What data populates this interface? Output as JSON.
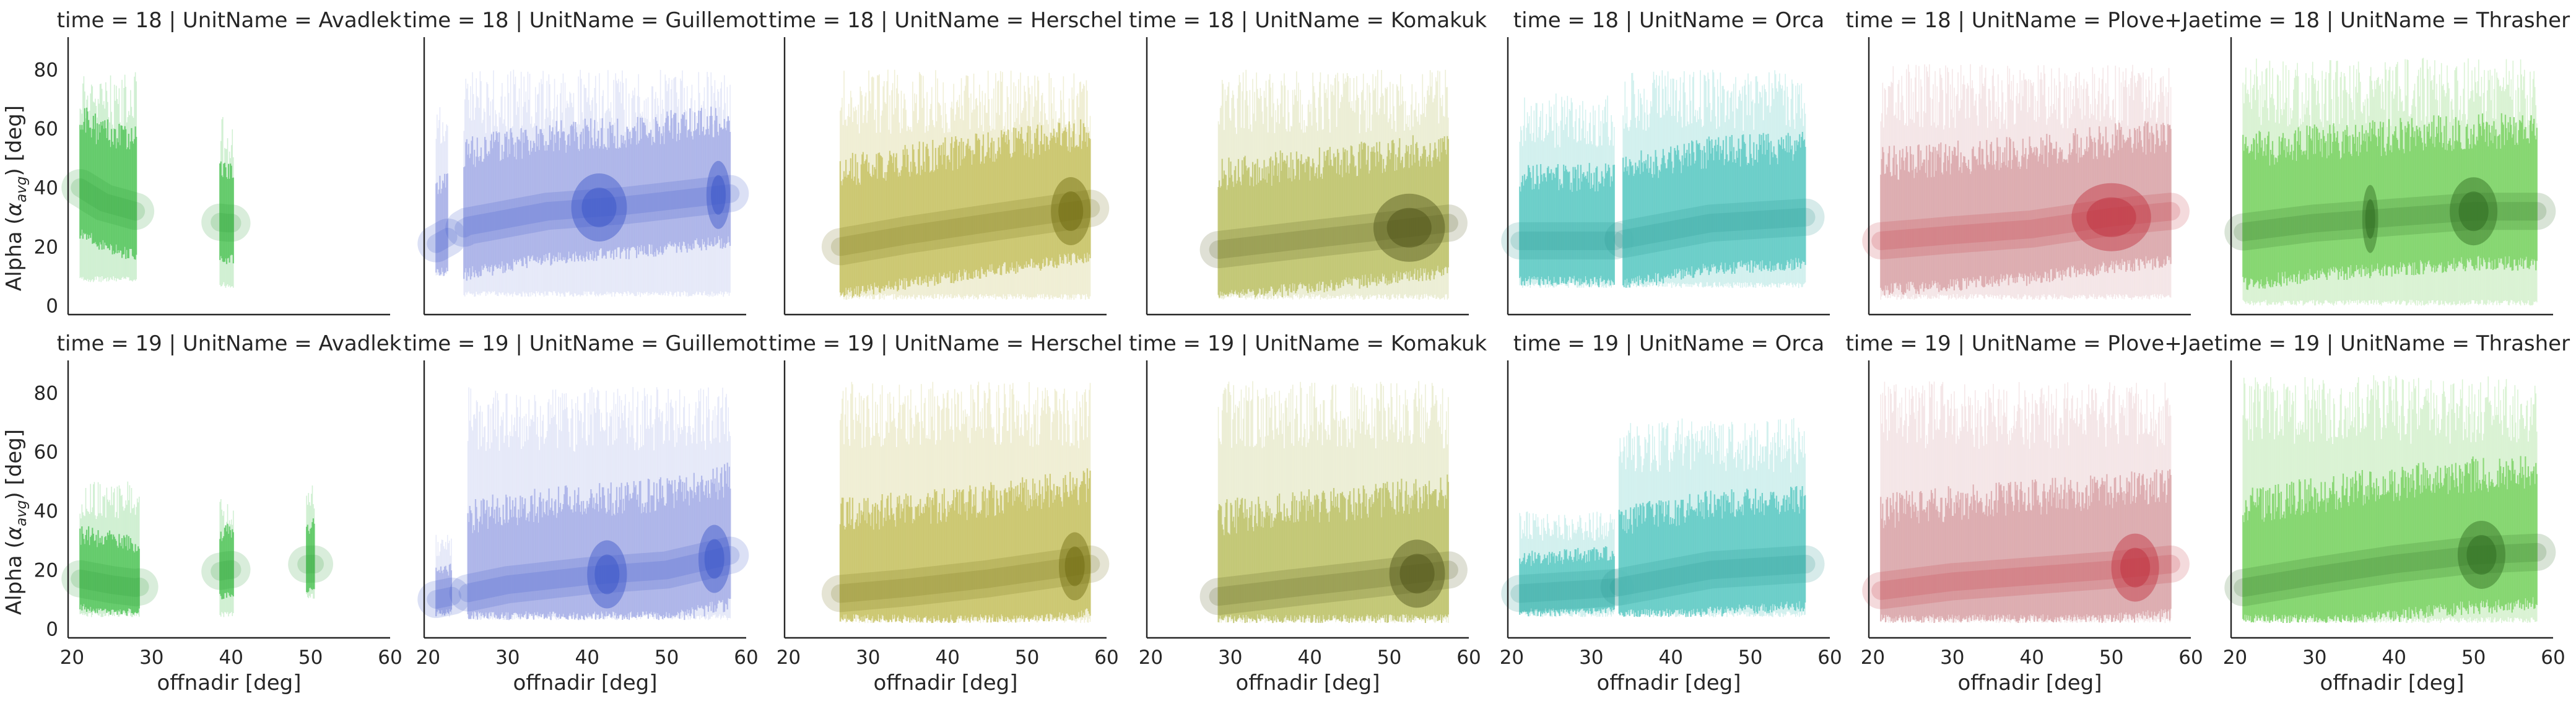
{
  "chart_data": {
    "type": "scatter",
    "layout": {
      "rows": 2,
      "cols": 7,
      "sharex": true,
      "sharey": true
    },
    "xlabel": "offnadir [deg]",
    "ylabel_parts": [
      "Alpha (",
      "α",
      "avg",
      ") [deg]"
    ],
    "xlim": [
      19.5,
      60
    ],
    "ylim": [
      -3,
      91
    ],
    "x_ticks": [
      20,
      30,
      40,
      50,
      60
    ],
    "x_tick_labels": [
      "20",
      "30",
      "40",
      "50",
      "60"
    ],
    "y_ticks": [
      0,
      20,
      40,
      60,
      80
    ],
    "y_tick_labels": [
      "0",
      "20",
      "40",
      "60",
      "80"
    ],
    "grid": false,
    "legend": "none",
    "row_values": [
      "18",
      "19"
    ],
    "units": [
      "Avadlek",
      "Guillemot",
      "Herschel",
      "Komakuk",
      "Orca",
      "Plove+Jae",
      "Thrasher"
    ],
    "facet_titles": [
      [
        "time = 18 | UnitName = Avadlek",
        "time = 18 | UnitName = Guillemot",
        "time = 18 | UnitName = Herschel",
        "time = 18 | UnitName = Komakuk",
        "time = 18 | UnitName = Orca",
        "time = 18 | UnitName = Plove+Jae",
        "time = 18 | UnitName = Thrasher"
      ],
      [
        "time = 19 | UnitName = Avadlek",
        "time = 19 | UnitName = Guillemot",
        "time = 19 | UnitName = Herschel",
        "time = 19 | UnitName = Komakuk",
        "time = 19 | UnitName = Orca",
        "time = 19 | UnitName = Plove+Jae",
        "time = 19 | UnitName = Thrasher"
      ]
    ],
    "colors": {
      "Avadlek": "#5cc863",
      "Guillemot": "#a9b2e8",
      "Herschel": "#c9c46a",
      "Komakuk": "#bfc46e",
      "Orca": "#63cbc5",
      "Plove+Jae": "#dba8ab",
      "Thrasher": "#7fd468"
    },
    "dense_colors": {
      "Avadlek": "#2f9a3a",
      "Guillemot": "#3a55c8",
      "Herschel": "#6e6a10",
      "Komakuk": "#4e5218",
      "Orca": "#1f8f8a",
      "Plove+Jae": "#c0303e",
      "Thrasher": "#2e6a20"
    },
    "panels": [
      [
        {
          "segments": [
            [
              21,
              28.2,
              8,
              80
            ],
            [
              38.6,
              40.3,
              6,
              64
            ]
          ],
          "median": [
            [
              21,
              40
            ],
            [
              24,
              35
            ],
            [
              28,
              32
            ],
            [
              39.5,
              28
            ]
          ],
          "dense_x": []
        },
        {
          "segments": [
            [
              21,
              22.5,
              10,
              68
            ],
            [
              24.5,
              58,
              3,
              80
            ]
          ],
          "median": [
            [
              21,
              21
            ],
            [
              25,
              27
            ],
            [
              35,
              32
            ],
            [
              45,
              34
            ],
            [
              58,
              38
            ]
          ],
          "dense_x": [
            [
              38,
              45
            ],
            [
              55,
              58
            ]
          ]
        },
        {
          "segments": [
            [
              26.5,
              58,
              2,
              80
            ]
          ],
          "median": [
            [
              26.5,
              20
            ],
            [
              35,
              24
            ],
            [
              45,
              28
            ],
            [
              58,
              33
            ]
          ],
          "dense_x": [
            [
              53,
              58
            ]
          ]
        },
        {
          "segments": [
            [
              28.5,
              57.5,
              2,
              80
            ]
          ],
          "median": [
            [
              28.5,
              19
            ],
            [
              38,
              22
            ],
            [
              48,
              25
            ],
            [
              57.5,
              28
            ]
          ],
          "dense_x": [
            [
              48,
              57
            ]
          ]
        },
        {
          "segments": [
            [
              21,
              33,
              6,
              72
            ],
            [
              34,
              57,
              6,
              80
            ]
          ],
          "median": [
            [
              21,
              22
            ],
            [
              33,
              22
            ],
            [
              45,
              28
            ],
            [
              57,
              30
            ]
          ],
          "dense_x": []
        },
        {
          "segments": [
            [
              21,
              57.5,
              2,
              82
            ]
          ],
          "median": [
            [
              21,
              22
            ],
            [
              30,
              24
            ],
            [
              40,
              26
            ],
            [
              50,
              30
            ],
            [
              57.5,
              32
            ]
          ],
          "dense_x": [
            [
              45,
              55
            ]
          ]
        },
        {
          "segments": [
            [
              21,
              58,
              0,
              84
            ]
          ],
          "median": [
            [
              21,
              25
            ],
            [
              30,
              28
            ],
            [
              40,
              30
            ],
            [
              50,
              32
            ],
            [
              58,
              32
            ]
          ],
          "dense_x": [
            [
              36,
              38
            ],
            [
              47,
              53
            ]
          ]
        }
      ],
      [
        {
          "segments": [
            [
              21,
              28.5,
              4,
              50
            ],
            [
              38.6,
              40.3,
              4,
              44
            ],
            [
              49.5,
              50.5,
              10,
              50
            ]
          ],
          "median": [
            [
              21,
              17
            ],
            [
              25,
              15
            ],
            [
              28,
              14
            ],
            [
              39.5,
              20
            ],
            [
              50,
              22
            ]
          ],
          "dense_x": []
        },
        {
          "segments": [
            [
              21,
              23,
              4,
              32
            ],
            [
              25,
              58,
              3,
              82
            ]
          ],
          "median": [
            [
              21,
              10
            ],
            [
              30,
              15
            ],
            [
              40,
              18
            ],
            [
              50,
              20
            ],
            [
              58,
              25
            ]
          ],
          "dense_x": [
            [
              40,
              45
            ],
            [
              54,
              58
            ]
          ]
        },
        {
          "segments": [
            [
              26.5,
              58,
              2,
              84
            ]
          ],
          "median": [
            [
              26.5,
              12
            ],
            [
              35,
              14
            ],
            [
              45,
              17
            ],
            [
              58,
              22
            ]
          ],
          "dense_x": [
            [
              54,
              58
            ]
          ]
        },
        {
          "segments": [
            [
              28.5,
              57.5,
              2,
              84
            ]
          ],
          "median": [
            [
              28.5,
              11
            ],
            [
              38,
              14
            ],
            [
              48,
              17
            ],
            [
              57.5,
              20
            ]
          ],
          "dense_x": [
            [
              50,
              57
            ]
          ]
        },
        {
          "segments": [
            [
              21,
              33,
              4,
              40
            ],
            [
              33.5,
              57,
              4,
              72
            ]
          ],
          "median": [
            [
              21,
              12
            ],
            [
              33,
              14
            ],
            [
              45,
              20
            ],
            [
              57,
              22
            ]
          ],
          "dense_x": []
        },
        {
          "segments": [
            [
              21,
              57.5,
              2,
              84
            ]
          ],
          "median": [
            [
              21,
              13
            ],
            [
              30,
              16
            ],
            [
              40,
              18
            ],
            [
              50,
              20
            ],
            [
              57.5,
              22
            ]
          ],
          "dense_x": [
            [
              50,
              56
            ]
          ]
        },
        {
          "segments": [
            [
              21,
              58,
              2,
              86
            ]
          ],
          "median": [
            [
              21,
              14
            ],
            [
              30,
              18
            ],
            [
              40,
              22
            ],
            [
              50,
              25
            ],
            [
              58,
              26
            ]
          ],
          "dense_x": [
            [
              48,
              54
            ]
          ]
        }
      ]
    ]
  }
}
